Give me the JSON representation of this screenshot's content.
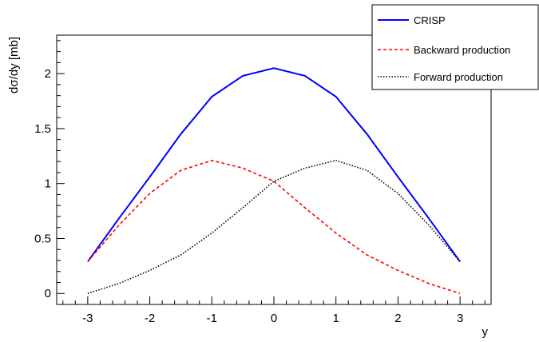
{
  "chart_data": {
    "type": "line",
    "title": "",
    "xlabel": "y",
    "ylabel": "dσ/dy [mb]",
    "xlim": [
      -3.5,
      3.5
    ],
    "ylim": [
      -0.1,
      2.35
    ],
    "x_ticks": [
      -3,
      -2,
      -1,
      0,
      1,
      2,
      3
    ],
    "y_ticks": [
      0,
      0.5,
      1,
      1.5,
      2
    ],
    "x_tick_labels": [
      "-3",
      "-2",
      "-1",
      "0",
      "1",
      "2",
      "3"
    ],
    "y_tick_labels": [
      "0",
      "0.5",
      "1",
      "1.5",
      "2"
    ],
    "grid": false,
    "legend_position": "top-right",
    "series": [
      {
        "name": "CRISP",
        "color": "#0000ff",
        "style": "solid",
        "x": [
          -3.0,
          -2.5,
          -2.0,
          -1.5,
          -1.0,
          -0.5,
          0.0,
          0.5,
          1.0,
          1.5,
          2.0,
          2.5,
          3.0
        ],
        "y": [
          0.29,
          0.68,
          1.06,
          1.45,
          1.79,
          1.98,
          2.05,
          1.98,
          1.79,
          1.45,
          1.06,
          0.68,
          0.29
        ]
      },
      {
        "name": "Backward production",
        "color": "#ff0000",
        "style": "dashed",
        "x": [
          -3.0,
          -2.5,
          -2.0,
          -1.5,
          -1.0,
          -0.5,
          0.0,
          0.5,
          1.0,
          1.5,
          2.0,
          2.5,
          3.0
        ],
        "y": [
          0.29,
          0.62,
          0.91,
          1.12,
          1.21,
          1.14,
          1.02,
          0.78,
          0.55,
          0.35,
          0.21,
          0.09,
          0.0
        ]
      },
      {
        "name": "Forward production",
        "color": "#000000",
        "style": "dotted",
        "x": [
          -3.0,
          -2.5,
          -2.0,
          -1.5,
          -1.0,
          -0.5,
          0.0,
          0.5,
          1.0,
          1.5,
          2.0,
          2.5,
          3.0
        ],
        "y": [
          0.0,
          0.09,
          0.21,
          0.35,
          0.55,
          0.78,
          1.02,
          1.14,
          1.21,
          1.12,
          0.91,
          0.62,
          0.29
        ]
      }
    ]
  }
}
